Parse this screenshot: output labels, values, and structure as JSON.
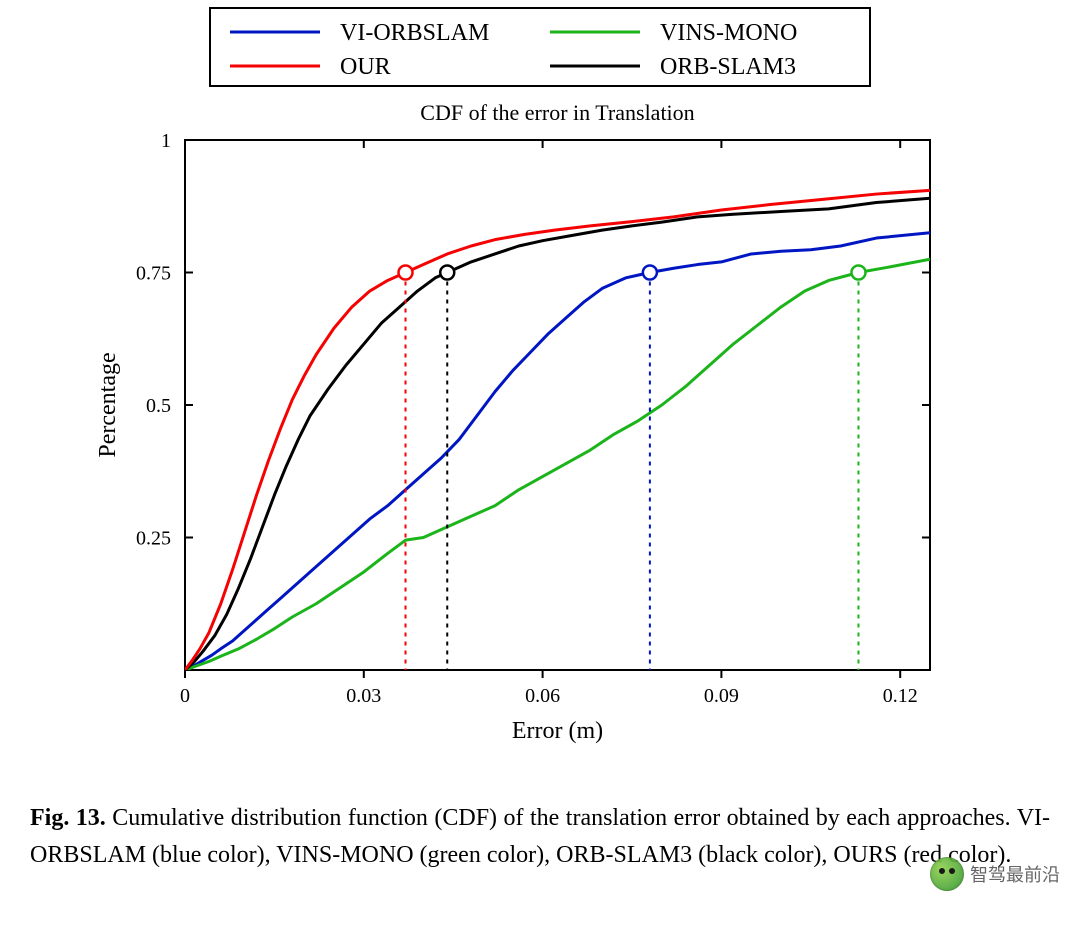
{
  "chart": {
    "type": "line",
    "title": "CDF of the error in Translation",
    "title_fontsize": 22,
    "xlabel": "Error (m)",
    "ylabel": "Percentage",
    "axis_label_fontsize": 24,
    "tick_fontsize": 20,
    "xlim": [
      0,
      0.125
    ],
    "ylim": [
      0,
      1
    ],
    "xticks": [
      0,
      0.03,
      0.06,
      0.09,
      0.12
    ],
    "xtick_labels": [
      "0",
      "0.03",
      "0.06",
      "0.09",
      "0.12"
    ],
    "yticks": [
      0.25,
      0.5,
      0.75,
      1
    ],
    "ytick_labels": [
      "0.25",
      "0.5",
      "0.75",
      "1"
    ],
    "background_color": "#ffffff",
    "axis_color": "#000000",
    "legend_border_color": "#000000",
    "axis_line_width": 2,
    "series_line_width": 3,
    "marker_radius": 7,
    "dash_pattern": "4 5",
    "legend": {
      "items": [
        {
          "label": "VI-ORBSLAM",
          "color": "#0016c2"
        },
        {
          "label": "VINS-MONO",
          "color": "#1bb41b"
        },
        {
          "label": "OUR",
          "color": "#f50202"
        },
        {
          "label": "ORB-SLAM3",
          "color": "#000000"
        }
      ],
      "fontsize": 24,
      "line_length": 90,
      "line_width": 3
    },
    "series": [
      {
        "name": "VI-ORBSLAM",
        "color": "#0016c2",
        "marker_x": 0.078,
        "x": [
          0,
          0.0015,
          0.003,
          0.0045,
          0.006,
          0.008,
          0.01,
          0.012,
          0.014,
          0.016,
          0.018,
          0.02,
          0.022,
          0.025,
          0.028,
          0.031,
          0.034,
          0.037,
          0.04,
          0.043,
          0.046,
          0.049,
          0.052,
          0.055,
          0.058,
          0.061,
          0.064,
          0.067,
          0.07,
          0.074,
          0.078,
          0.082,
          0.086,
          0.09,
          0.095,
          0.1,
          0.105,
          0.11,
          0.116,
          0.125
        ],
        "y": [
          0,
          0.008,
          0.018,
          0.028,
          0.04,
          0.055,
          0.075,
          0.095,
          0.115,
          0.135,
          0.155,
          0.175,
          0.195,
          0.225,
          0.255,
          0.285,
          0.31,
          0.34,
          0.37,
          0.4,
          0.435,
          0.48,
          0.525,
          0.565,
          0.6,
          0.635,
          0.665,
          0.695,
          0.72,
          0.74,
          0.75,
          0.758,
          0.765,
          0.77,
          0.785,
          0.79,
          0.793,
          0.8,
          0.815,
          0.825
        ]
      },
      {
        "name": "VINS-MONO",
        "color": "#1bb41b",
        "marker_x": 0.113,
        "x": [
          0,
          0.002,
          0.004,
          0.006,
          0.009,
          0.012,
          0.015,
          0.018,
          0.022,
          0.026,
          0.03,
          0.034,
          0.037,
          0.04,
          0.044,
          0.048,
          0.052,
          0.056,
          0.06,
          0.064,
          0.068,
          0.072,
          0.076,
          0.08,
          0.084,
          0.088,
          0.092,
          0.096,
          0.1,
          0.104,
          0.108,
          0.113,
          0.118,
          0.125
        ],
        "y": [
          0,
          0.008,
          0.016,
          0.026,
          0.04,
          0.058,
          0.078,
          0.1,
          0.125,
          0.155,
          0.185,
          0.22,
          0.245,
          0.25,
          0.27,
          0.29,
          0.31,
          0.34,
          0.365,
          0.39,
          0.415,
          0.445,
          0.47,
          0.5,
          0.535,
          0.575,
          0.615,
          0.65,
          0.685,
          0.715,
          0.735,
          0.75,
          0.76,
          0.775
        ]
      },
      {
        "name": "ORB-SLAM3",
        "color": "#000000",
        "marker_x": 0.044,
        "x": [
          0,
          0.0015,
          0.003,
          0.005,
          0.007,
          0.009,
          0.011,
          0.013,
          0.015,
          0.017,
          0.019,
          0.021,
          0.024,
          0.027,
          0.03,
          0.033,
          0.036,
          0.039,
          0.042,
          0.044,
          0.048,
          0.052,
          0.056,
          0.06,
          0.065,
          0.07,
          0.075,
          0.08,
          0.086,
          0.092,
          0.1,
          0.108,
          0.116,
          0.125
        ],
        "y": [
          0,
          0.015,
          0.035,
          0.065,
          0.105,
          0.155,
          0.21,
          0.27,
          0.33,
          0.385,
          0.435,
          0.48,
          0.53,
          0.575,
          0.615,
          0.655,
          0.685,
          0.715,
          0.74,
          0.75,
          0.77,
          0.785,
          0.8,
          0.81,
          0.82,
          0.83,
          0.838,
          0.845,
          0.855,
          0.86,
          0.865,
          0.87,
          0.882,
          0.89
        ]
      },
      {
        "name": "OUR",
        "color": "#f50202",
        "marker_x": 0.037,
        "x": [
          0,
          0.0012,
          0.0025,
          0.004,
          0.006,
          0.008,
          0.01,
          0.012,
          0.014,
          0.016,
          0.018,
          0.02,
          0.022,
          0.025,
          0.028,
          0.031,
          0.034,
          0.037,
          0.04,
          0.044,
          0.048,
          0.052,
          0.057,
          0.062,
          0.068,
          0.075,
          0.082,
          0.09,
          0.098,
          0.107,
          0.116,
          0.125
        ],
        "y": [
          0,
          0.018,
          0.04,
          0.07,
          0.125,
          0.19,
          0.26,
          0.33,
          0.395,
          0.455,
          0.51,
          0.555,
          0.595,
          0.645,
          0.685,
          0.715,
          0.735,
          0.75,
          0.765,
          0.785,
          0.8,
          0.812,
          0.822,
          0.83,
          0.838,
          0.846,
          0.855,
          0.868,
          0.878,
          0.888,
          0.898,
          0.905
        ]
      }
    ]
  },
  "caption": {
    "fig_label": "Fig. 13.",
    "text": "Cumulative distribution function (CDF) of the translation error obtained by each approaches. VI-ORBSLAM (blue color), VINS-MONO (green color), ORB-SLAM3 (black color), OURS (red color)."
  },
  "watermark": {
    "text": "智驾最前沿"
  }
}
